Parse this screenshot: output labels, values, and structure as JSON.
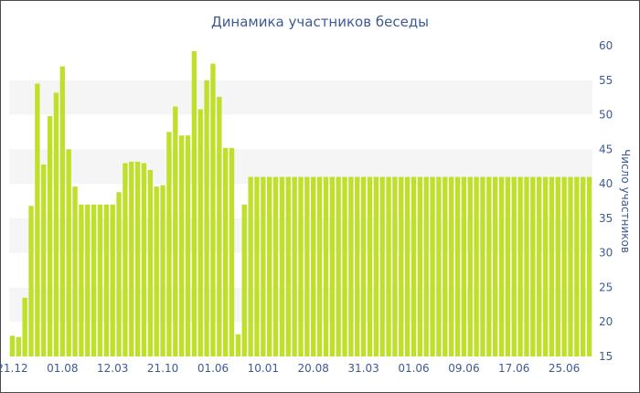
{
  "chart_data": {
    "type": "bar",
    "title": "Динамика участников беседы",
    "ylabel": "Число участников",
    "xlabel": "",
    "ylim": [
      15,
      60
    ],
    "yticks": [
      15,
      20,
      25,
      30,
      35,
      40,
      45,
      50,
      55,
      60
    ],
    "y_axis_position": "right",
    "grid": "alternating horizontal bands",
    "color": "#bfe02a",
    "band_color": "#f5f5f5",
    "x_tick_labels": [
      {
        "index": 0,
        "label": "21.12"
      },
      {
        "index": 8,
        "label": "01.08"
      },
      {
        "index": 16,
        "label": "12.03"
      },
      {
        "index": 24,
        "label": "21.10"
      },
      {
        "index": 32,
        "label": "01.06"
      },
      {
        "index": 40,
        "label": "10.01"
      },
      {
        "index": 48,
        "label": "20.08"
      },
      {
        "index": 56,
        "label": "31.03"
      },
      {
        "index": 64,
        "label": "01.06"
      },
      {
        "index": 72,
        "label": "09.06"
      },
      {
        "index": 80,
        "label": "17.06"
      },
      {
        "index": 88,
        "label": "25.06"
      }
    ],
    "values": [
      18,
      17.8,
      23.5,
      36.8,
      54.5,
      42.8,
      49.8,
      53.2,
      57,
      45,
      39.6,
      37,
      37,
      37,
      37,
      37,
      37,
      38.8,
      43,
      43.2,
      43.2,
      43,
      42,
      39.6,
      39.8,
      47.5,
      51.2,
      47,
      47,
      59.2,
      50.8,
      55,
      57.4,
      52.6,
      45.2,
      45.2,
      18.2,
      37,
      41,
      41,
      41,
      41,
      41,
      41,
      41,
      41,
      41,
      41,
      41,
      41,
      41,
      41,
      41,
      41,
      41,
      41,
      41,
      41,
      41,
      41,
      41,
      41,
      41,
      41,
      41,
      41,
      41,
      41,
      41,
      41,
      41,
      41,
      41,
      41,
      41,
      41,
      41,
      41,
      41,
      41,
      41,
      41,
      41,
      41,
      41,
      41,
      41,
      41,
      41,
      41,
      41,
      41,
      41
    ]
  }
}
